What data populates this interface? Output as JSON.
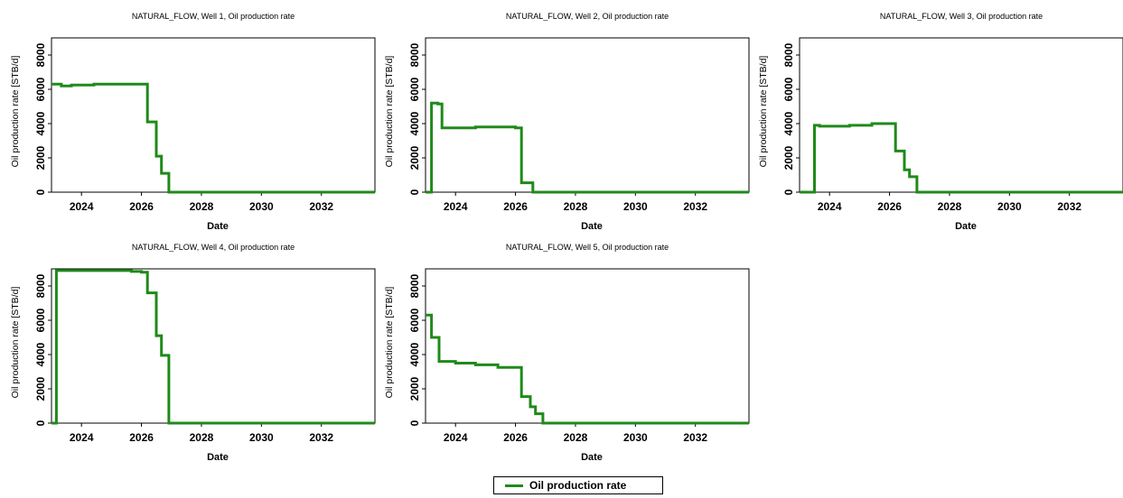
{
  "legend": {
    "label": "Oil production rate",
    "color": "#1f8a1a",
    "placement": "bottom-center"
  },
  "chart_data": [
    {
      "type": "line",
      "title": "NATURAL_FLOW, Well 1, Oil production rate",
      "xlabel": "Date",
      "ylabel": "Oil production rate [STB/d]",
      "xlim": [
        "2023-01-01",
        "2033-10-15"
      ],
      "ylim": [
        0,
        9000
      ],
      "xticks": [
        "2024",
        "2026",
        "2028",
        "2030",
        "2032"
      ],
      "yticks": [
        "0",
        "2000",
        "4000",
        "6000",
        "8000"
      ],
      "grid": false,
      "series": [
        {
          "name": "Oil production rate",
          "color": "#1f8a1a",
          "step": true,
          "points": [
            [
              "2023-01-01",
              6300
            ],
            [
              "2023-05-01",
              6200
            ],
            [
              "2023-09-01",
              6250
            ],
            [
              "2024-06-01",
              6300
            ],
            [
              "2025-06-01",
              6300
            ],
            [
              "2026-03-15",
              4100
            ],
            [
              "2026-07-01",
              2100
            ],
            [
              "2026-09-01",
              1100
            ],
            [
              "2026-12-01",
              0
            ],
            [
              "2033-10-15",
              0
            ]
          ]
        }
      ]
    },
    {
      "type": "line",
      "title": "NATURAL_FLOW, Well 2, Oil production rate",
      "xlabel": "Date",
      "ylabel": "Oil production rate [STB/d]",
      "xlim": [
        "2023-01-01",
        "2033-10-15"
      ],
      "ylim": [
        0,
        9000
      ],
      "xticks": [
        "2024",
        "2026",
        "2028",
        "2030",
        "2032"
      ],
      "yticks": [
        "0",
        "2000",
        "4000",
        "6000",
        "8000"
      ],
      "grid": false,
      "series": [
        {
          "name": "Oil production rate",
          "color": "#1f8a1a",
          "step": true,
          "points": [
            [
              "2023-01-01",
              0
            ],
            [
              "2023-03-15",
              5200
            ],
            [
              "2023-06-01",
              5150
            ],
            [
              "2023-07-20",
              3750
            ],
            [
              "2024-09-01",
              3800
            ],
            [
              "2025-06-01",
              3800
            ],
            [
              "2026-01-01",
              3750
            ],
            [
              "2026-03-15",
              550
            ],
            [
              "2026-08-01",
              0
            ],
            [
              "2033-10-15",
              0
            ]
          ]
        }
      ]
    },
    {
      "type": "line",
      "title": "NATURAL_FLOW, Well 3, Oil production rate",
      "xlabel": "Date",
      "ylabel": "Oil production rate [STB/d]",
      "xlim": [
        "2023-01-01",
        "2033-10-15"
      ],
      "ylim": [
        0,
        9000
      ],
      "xticks": [
        "2024",
        "2026",
        "2028",
        "2030",
        "2032"
      ],
      "yticks": [
        "0",
        "2000",
        "4000",
        "6000",
        "8000"
      ],
      "grid": false,
      "series": [
        {
          "name": "Oil production rate",
          "color": "#1f8a1a",
          "step": true,
          "points": [
            [
              "2023-01-01",
              0
            ],
            [
              "2023-07-01",
              3900
            ],
            [
              "2023-09-01",
              3850
            ],
            [
              "2024-09-01",
              3900
            ],
            [
              "2025-06-01",
              4000
            ],
            [
              "2026-03-15",
              2400
            ],
            [
              "2026-07-01",
              1300
            ],
            [
              "2026-09-01",
              900
            ],
            [
              "2026-12-01",
              0
            ],
            [
              "2033-10-15",
              0
            ]
          ]
        }
      ]
    },
    {
      "type": "line",
      "title": "NATURAL_FLOW, Well 4, Oil production rate",
      "xlabel": "Date",
      "ylabel": "Oil production rate [STB/d]",
      "xlim": [
        "2023-01-01",
        "2033-10-15"
      ],
      "ylim": [
        0,
        9000
      ],
      "xticks": [
        "2024",
        "2026",
        "2028",
        "2030",
        "2032"
      ],
      "yticks": [
        "0",
        "2000",
        "4000",
        "6000",
        "8000"
      ],
      "grid": false,
      "series": [
        {
          "name": "Oil production rate",
          "color": "#1f8a1a",
          "step": true,
          "points": [
            [
              "2023-01-01",
              0
            ],
            [
              "2023-03-01",
              8900
            ],
            [
              "2024-09-01",
              8900
            ],
            [
              "2025-09-01",
              8850
            ],
            [
              "2026-01-01",
              8800
            ],
            [
              "2026-03-15",
              7600
            ],
            [
              "2026-07-01",
              5100
            ],
            [
              "2026-09-01",
              3950
            ],
            [
              "2026-12-01",
              0
            ],
            [
              "2033-10-15",
              0
            ]
          ]
        }
      ]
    },
    {
      "type": "line",
      "title": "NATURAL_FLOW, Well 5, Oil production rate",
      "xlabel": "Date",
      "ylabel": "Oil production rate [STB/d]",
      "xlim": [
        "2023-01-01",
        "2033-10-15"
      ],
      "ylim": [
        0,
        9000
      ],
      "xticks": [
        "2024",
        "2026",
        "2028",
        "2030",
        "2032"
      ],
      "yticks": [
        "0",
        "2000",
        "4000",
        "6000",
        "8000"
      ],
      "grid": false,
      "series": [
        {
          "name": "Oil production rate",
          "color": "#1f8a1a",
          "step": true,
          "points": [
            [
              "2023-01-01",
              6300
            ],
            [
              "2023-03-15",
              5000
            ],
            [
              "2023-06-15",
              3600
            ],
            [
              "2024-01-01",
              3500
            ],
            [
              "2024-09-01",
              3400
            ],
            [
              "2025-06-01",
              3250
            ],
            [
              "2026-03-15",
              1550
            ],
            [
              "2026-07-01",
              950
            ],
            [
              "2026-09-01",
              550
            ],
            [
              "2026-12-01",
              0
            ],
            [
              "2033-10-15",
              0
            ]
          ]
        }
      ]
    }
  ]
}
